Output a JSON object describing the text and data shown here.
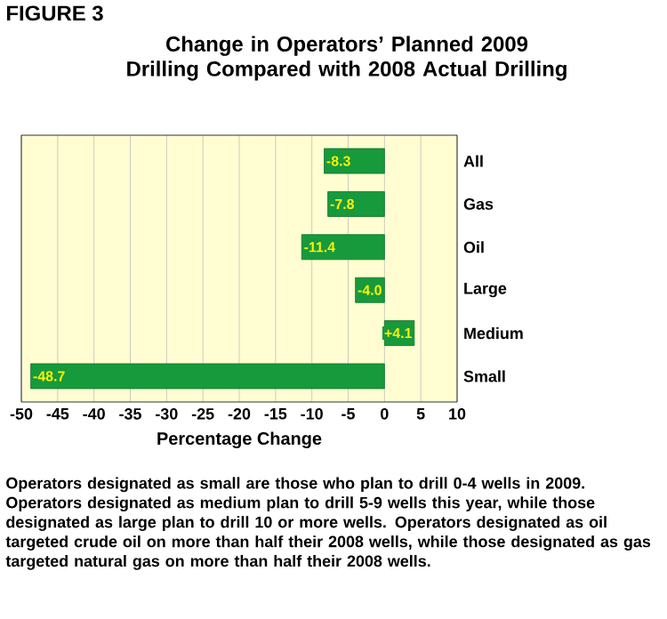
{
  "chart_data": {
    "type": "bar",
    "orientation": "horizontal",
    "title": "FIGURE 3",
    "subtitle": "Change in Operators’ Planned 2009 Drilling Compared with 2008 Actual Drilling",
    "xlabel": "Percentage Change",
    "categories": [
      "All",
      "Gas",
      "Oil",
      "Large",
      "Medium",
      "Small"
    ],
    "values": [
      -8.3,
      -7.8,
      -11.4,
      -4.0,
      4.1,
      -48.7
    ],
    "value_labels": [
      "-8.3",
      "-7.8",
      "-11.4",
      "-4.0",
      "+4.1",
      "-48.7"
    ],
    "color": "#179a3c",
    "xlim": [
      -50,
      10
    ],
    "xticks": [
      -50,
      -45,
      -40,
      -35,
      -30,
      -25,
      -20,
      -15,
      -10,
      -5,
      0,
      5,
      10
    ],
    "grid": "x",
    "annotations": [
      "Operators designated as small are those who plan to drill 0-4 wells in 2009. Operators designated as medium plan to drill 5-9 wells this year, while those designated as large plan to drill 10 or more wells. Operators designated as oil targeted crude oil on more than half their 2008 wells, while those designated as gas targeted natural gas on more than half their 2008 wells."
    ]
  }
}
